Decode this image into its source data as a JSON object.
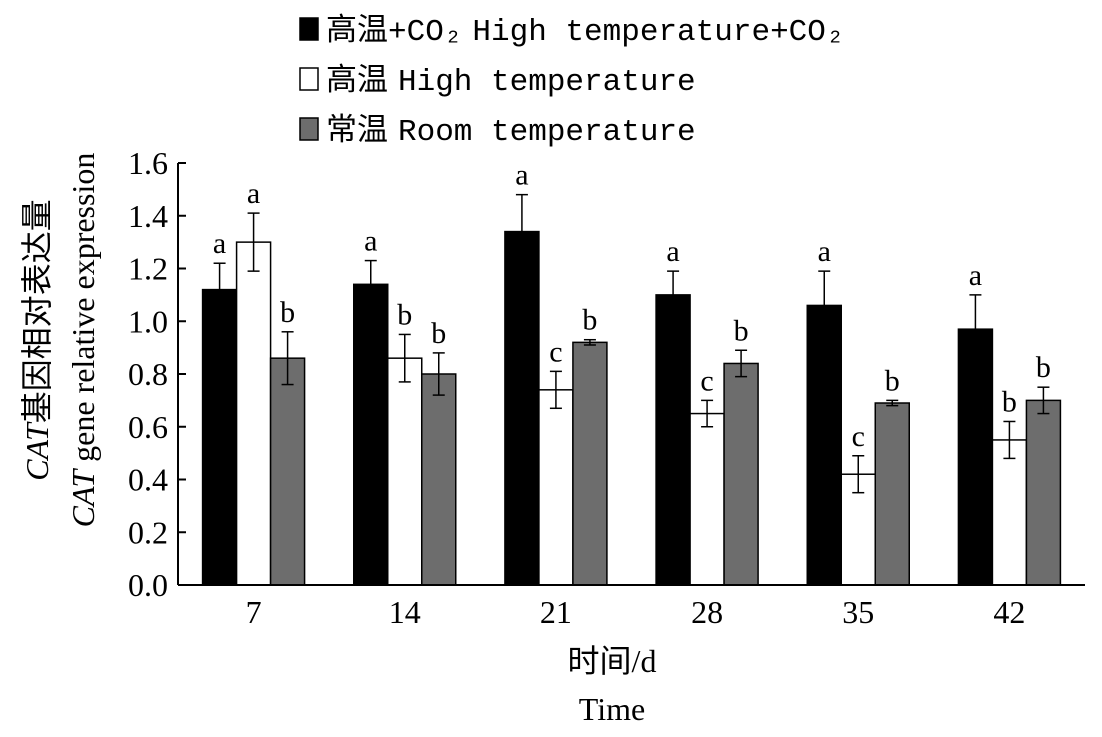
{
  "chart_data": {
    "type": "bar",
    "xlabel_cn": "时间/d",
    "xlabel_en": "Time",
    "ylabel_cn_prefix": "CAT",
    "ylabel_cn_suffix": "基因相对表达量",
    "ylabel_en_prefix": "CAT",
    "ylabel_en_suffix": " gene relative expression",
    "ylim": [
      0,
      1.6
    ],
    "yticks": [
      "0.0",
      "0.2",
      "0.4",
      "0.6",
      "0.8",
      "1.0",
      "1.2",
      "1.4",
      "1.6"
    ],
    "categories": [
      "7",
      "14",
      "21",
      "28",
      "35",
      "42"
    ],
    "legend_position": "top",
    "series": [
      {
        "name_cn": "高温+CO₂",
        "name_en": "High temperature+CO₂",
        "color": "#000000",
        "values": [
          1.12,
          1.14,
          1.34,
          1.1,
          1.06,
          0.97
        ],
        "errors": [
          0.1,
          0.09,
          0.14,
          0.09,
          0.13,
          0.13
        ],
        "labels": [
          "a",
          "a",
          "a",
          "a",
          "a",
          "a"
        ]
      },
      {
        "name_cn": "高温",
        "name_en": "High temperature",
        "color": "#ffffff",
        "values": [
          1.3,
          0.86,
          0.74,
          0.65,
          0.42,
          0.55
        ],
        "errors": [
          0.11,
          0.09,
          0.07,
          0.05,
          0.07,
          0.07
        ],
        "labels": [
          "a",
          "b",
          "c",
          "c",
          "c",
          "b"
        ]
      },
      {
        "name_cn": "常温",
        "name_en": "Room temperature",
        "color": "#6d6d6d",
        "values": [
          0.86,
          0.8,
          0.92,
          0.84,
          0.69,
          0.7
        ],
        "errors": [
          0.1,
          0.08,
          0.01,
          0.05,
          0.01,
          0.05
        ],
        "labels": [
          "b",
          "b",
          "b",
          "b",
          "b",
          "b"
        ]
      }
    ]
  }
}
